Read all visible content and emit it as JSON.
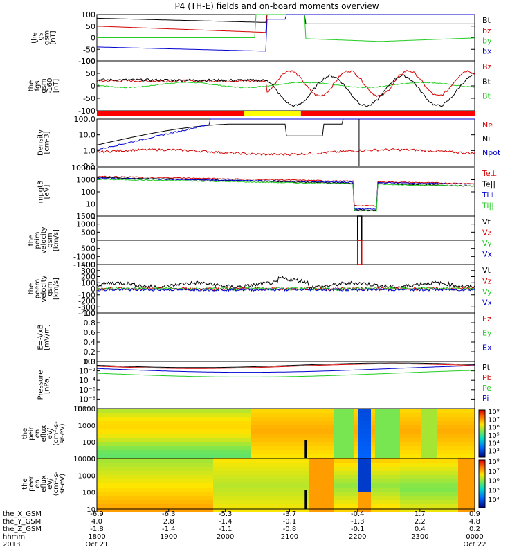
{
  "title": "P4 (TH-E) fields and on-board moments overview",
  "colors": {
    "black": "#000000",
    "red": "#d40000",
    "green": "#22cc22",
    "blue": "#0000d0",
    "yellow": "#ffff00",
    "barred": "#ff0000"
  },
  "chart_data": [
    {
      "type": "line",
      "panel": "fgs_gsm",
      "ylabel": [
        "the",
        "fgs",
        "gsm",
        "[nT]"
      ],
      "yticks": [
        "100",
        "50",
        "0",
        "-50",
        "-100"
      ],
      "ylim": [
        -100,
        100
      ],
      "legend": [
        {
          "name": "Bt",
          "color": "black"
        },
        {
          "name": "bz",
          "color": "red"
        },
        {
          "name": "by",
          "color": "green"
        },
        {
          "name": "bx",
          "color": "blue"
        }
      ]
    },
    {
      "type": "line",
      "panel": "fgs_gsm_clipped",
      "ylabel": [
        "the",
        "fgs",
        "gsm",
        "-160",
        "[nT]"
      ],
      "yticks": [
        "100",
        "50",
        "0",
        "-50",
        "-100"
      ],
      "ylim": [
        -130,
        110
      ],
      "legend": [
        {
          "name": "Bz",
          "color": "red"
        },
        {
          "name": "Bt",
          "color": "black"
        },
        {
          "name": "Bt",
          "color": "green"
        }
      ]
    },
    {
      "type": "line",
      "panel": "density",
      "ylabel": [
        "Density",
        "[cm-3]"
      ],
      "yticks": [
        "100.0",
        "10.0",
        "1.0",
        "0.1"
      ],
      "ylim": [
        0.05,
        200
      ],
      "legend": [
        {
          "name": "Ne",
          "color": "red"
        },
        {
          "name": "Ni",
          "color": "black"
        },
        {
          "name": "Npot",
          "color": "blue"
        }
      ]
    },
    {
      "type": "line",
      "panel": "temperature",
      "ylabel": [
        "mpgt3",
        "[eV]"
      ],
      "yticks": [
        "10000",
        "1000",
        "100",
        "10",
        "1"
      ],
      "ylim": [
        1,
        10000
      ],
      "legend": [
        {
          "name": "Te⊥",
          "color": "red"
        },
        {
          "name": "Te||",
          "color": "black"
        },
        {
          "name": "Ti⊥",
          "color": "blue"
        },
        {
          "name": "Ti||",
          "color": "green"
        }
      ]
    },
    {
      "type": "line",
      "panel": "peim_velocity",
      "ylabel": [
        "the",
        "peim",
        "velocity",
        "gsm",
        "[km/s]"
      ],
      "yticks": [
        "1500",
        "1000",
        "500",
        "0",
        "-500",
        "-1000",
        "-1500"
      ],
      "ylim": [
        -1500,
        1500
      ],
      "legend": [
        {
          "name": "Vt",
          "color": "black"
        },
        {
          "name": "Vz",
          "color": "red"
        },
        {
          "name": "Vy",
          "color": "green"
        },
        {
          "name": "Vx",
          "color": "blue"
        }
      ]
    },
    {
      "type": "line",
      "panel": "peem_velocity",
      "ylabel": [
        "the",
        "peem",
        "velocity",
        "gsm",
        "[km/s]"
      ],
      "yticks": [
        "400",
        "300",
        "200",
        "100",
        "0",
        "-100",
        "-200",
        "-300",
        "-400"
      ],
      "ylim": [
        -400,
        400
      ],
      "legend": [
        {
          "name": "Vt",
          "color": "black"
        },
        {
          "name": "Vz",
          "color": "red"
        },
        {
          "name": "Vy",
          "color": "green"
        },
        {
          "name": "Vx",
          "color": "blue"
        }
      ]
    },
    {
      "type": "line",
      "panel": "efield",
      "ylabel": [
        "E=-VxB",
        "[mV/m]"
      ],
      "yticks": [
        "1.0",
        "0.8",
        "0.6",
        "0.4",
        "0.2",
        "0.0"
      ],
      "ylim": [
        0,
        1
      ],
      "legend": [
        {
          "name": "Ez",
          "color": "red"
        },
        {
          "name": "Ey",
          "color": "green"
        },
        {
          "name": "Ex",
          "color": "blue"
        }
      ]
    },
    {
      "type": "line",
      "panel": "pressure",
      "ylabel": [
        "Pressure",
        "[nPa]"
      ],
      "yticks": [
        "10⁰",
        "10⁻²",
        "10⁻⁴",
        "10⁻⁶",
        "10⁻⁸",
        "10⁻¹⁰"
      ],
      "ylim": [
        1e-10,
        10
      ],
      "legend": [
        {
          "name": "Pt",
          "color": "black"
        },
        {
          "name": "Pb",
          "color": "red"
        },
        {
          "name": "Pe",
          "color": "green"
        },
        {
          "name": "Pi",
          "color": "blue"
        }
      ]
    },
    {
      "type": "heatmap",
      "panel": "peir_en_eflux",
      "ylabel": [
        "the",
        "peir",
        "en",
        "eflux",
        "eV/",
        "(cm²-s-",
        "sr-eV)"
      ],
      "yticks": [
        "10000",
        "1000",
        "100",
        "10"
      ],
      "colorbar": [
        "10⁸",
        "10⁷",
        "10⁶",
        "10⁵",
        "10⁴",
        "10³"
      ]
    },
    {
      "type": "heatmap",
      "panel": "peer_en_eflux",
      "ylabel": [
        "the",
        "peer",
        "en",
        "eflux",
        "eV/",
        "(cm²-s-",
        "sr-eV)"
      ],
      "yticks": [
        "10000",
        "1000",
        "100",
        "10"
      ],
      "colorbar": [
        "10⁸",
        "10⁷",
        "10⁶",
        "10⁵",
        "10⁴"
      ]
    }
  ],
  "xaxis": {
    "rows": [
      {
        "label": "the_X_GSM",
        "values": [
          "-6.9",
          "-6.3",
          "-5.3",
          "-3.7",
          "-0.4",
          "1.7",
          "0.9"
        ]
      },
      {
        "label": "the_Y_GSM",
        "values": [
          "4.0",
          "2.8",
          "-1.4",
          "-0.1",
          "-1.3",
          "2.2",
          "4.8"
        ]
      },
      {
        "label": "the_Z_GSM",
        "values": [
          "-1.8",
          "-1.4",
          "-1.1",
          "-0.8",
          "-0.1",
          "0.4",
          "0.2"
        ]
      },
      {
        "label": "hhmm",
        "values": [
          "1800",
          "1900",
          "2000",
          "2100",
          "2200",
          "2300",
          "0000"
        ]
      },
      {
        "label": "2013",
        "values": [
          "Oct 21",
          "",
          "",
          "",
          "",
          "",
          "Oct 22"
        ]
      }
    ],
    "extra_row1": [
      "-3.7",
      "-0.4"
    ],
    "extra_row2": [
      "-0.1",
      "-1.3"
    ],
    "extra_row3": [
      "-0.8",
      "-0.1"
    ]
  },
  "coords_row": {
    "x": [
      "-6.9",
      "-6.3",
      "-5.3",
      "-3.7",
      "-0.4",
      "1.7",
      "0.9"
    ],
    "y": [
      "4.0",
      "2.8",
      "-1.4",
      "-0.1",
      "-1.3",
      "2.2",
      "4.8"
    ],
    "z": [
      "-1.8",
      "-1.4",
      "-1.1",
      "-0.8",
      "-0.1",
      "0.4",
      "0.2"
    ],
    "hhmm": [
      "1800",
      "1900",
      "2000",
      "2100",
      "2200",
      "2300",
      "0000"
    ],
    "date": [
      "Oct 21",
      "Oct 22"
    ]
  }
}
